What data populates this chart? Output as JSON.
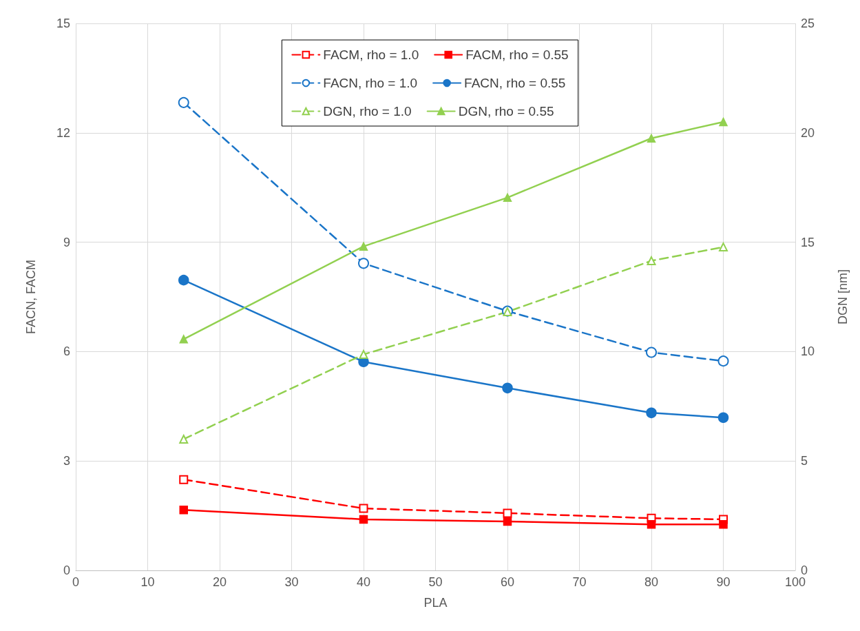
{
  "chart_data": {
    "type": "line",
    "xlabel": "PLA",
    "ylabel": "FACN, FACM",
    "y2label": "DGN [nm]",
    "x": [
      15,
      40,
      60,
      80,
      90
    ],
    "xlim": [
      0,
      100
    ],
    "xticks": [
      0,
      10,
      20,
      30,
      40,
      50,
      60,
      70,
      80,
      90,
      100
    ],
    "ylim": [
      0,
      15
    ],
    "yticks": [
      0,
      3,
      6,
      9,
      12,
      15
    ],
    "y2lim": [
      0,
      25
    ],
    "y2ticks": [
      0,
      5,
      10,
      15,
      20,
      25
    ],
    "grid": true,
    "legend": "top",
    "series": [
      {
        "name": "FACM, rho = 1.0",
        "color": "#ff0000",
        "marker": "square",
        "line_style": "dashed",
        "values": [
          2.49,
          1.7,
          1.57,
          1.43,
          1.4
        ]
      },
      {
        "name": "FACM, rho = 0.55",
        "color": "#ff0000",
        "marker": "square",
        "line_style": "solid",
        "values": [
          1.66,
          1.4,
          1.34,
          1.26,
          1.26
        ]
      },
      {
        "name": "FACN, rho = 1.0",
        "color": "#1a75c8",
        "marker": "circle",
        "line_style": "dashed",
        "values": [
          12.83,
          8.42,
          7.11,
          5.98,
          5.74
        ]
      },
      {
        "name": "FACN, rho = 0.55",
        "color": "#1a75c8",
        "marker": "circle",
        "line_style": "solid",
        "values": [
          7.96,
          5.72,
          5.0,
          4.32,
          4.19
        ]
      },
      {
        "name": "DGN, rho = 1.0",
        "color": "#92d050",
        "marker": "triangle",
        "line_style": "dashed",
        "axis": "y2",
        "values": [
          6.0,
          9.87,
          11.82,
          14.15,
          14.78
        ]
      },
      {
        "name": "DGN, rho = 0.55",
        "color": "#92d050",
        "marker": "triangle",
        "line_style": "solid",
        "axis": "y2",
        "values": [
          10.57,
          14.81,
          17.04,
          19.75,
          20.5
        ]
      }
    ]
  }
}
